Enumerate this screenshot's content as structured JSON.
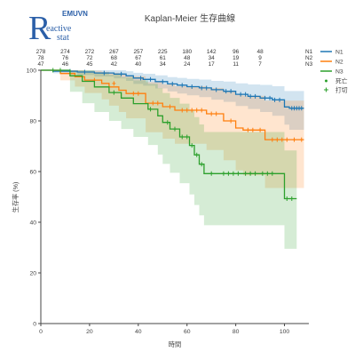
{
  "logo": {
    "top_text": "EMUVN",
    "big_letter": "R",
    "line1": "eactive",
    "line2": "stat"
  },
  "chart_data": {
    "type": "line",
    "title": "Kaplan-Meier 生存曲線",
    "xlabel": "時間",
    "ylabel": "生存率 (%)",
    "xlim": [
      0,
      110
    ],
    "ylim": [
      0,
      100
    ],
    "xticks": [
      0,
      20,
      40,
      60,
      80,
      100
    ],
    "yticks": [
      0,
      20,
      40,
      60,
      80,
      100
    ],
    "grid": false,
    "legend_position": "right",
    "risk_table": {
      "times": [
        0,
        10,
        20,
        30,
        40,
        50,
        60,
        70,
        80,
        90,
        100
      ],
      "rows": [
        {
          "name": "N1",
          "counts": [
            278,
            274,
            272,
            267,
            257,
            225,
            180,
            142,
            96,
            48,
            ""
          ]
        },
        {
          "name": "N2",
          "counts": [
            78,
            76,
            72,
            68,
            67,
            61,
            48,
            34,
            19,
            9,
            ""
          ]
        },
        {
          "name": "N3",
          "counts": [
            47,
            46,
            45,
            42,
            40,
            34,
            24,
            17,
            11,
            7,
            ""
          ]
        }
      ]
    },
    "series": [
      {
        "name": "N1",
        "color": "#1f77b4",
        "x": [
          0,
          5,
          15,
          22,
          30,
          35,
          38,
          42,
          47,
          52,
          56,
          60,
          65,
          70,
          75,
          80,
          85,
          90,
          95,
          100,
          102,
          108
        ],
        "y": [
          100,
          99.6,
          99.3,
          98.9,
          98.5,
          97.8,
          96.9,
          96.4,
          95.5,
          94.6,
          94.1,
          93.5,
          93.0,
          92.3,
          91.7,
          90.5,
          89.7,
          89.0,
          88.3,
          85.5,
          85.0,
          85.0
        ],
        "lower": [
          100,
          98.8,
          98.1,
          97.5,
          96.8,
          95.8,
          94.6,
          93.9,
          92.8,
          91.6,
          90.8,
          90.1,
          89.4,
          88.4,
          87.5,
          85.9,
          84.7,
          83.5,
          82.0,
          78.5,
          76.5,
          76.5
        ],
        "upper": [
          100,
          100,
          100,
          100,
          100,
          99.6,
          99.0,
          98.6,
          98.0,
          97.3,
          97.0,
          96.6,
          96.3,
          95.8,
          95.5,
          94.8,
          94.4,
          94.2,
          93.7,
          91.8,
          91.8,
          91.8
        ],
        "censored_x": [
          12,
          18,
          26,
          33,
          41,
          45,
          50,
          54,
          58,
          62,
          66,
          68,
          72,
          76,
          78,
          82,
          84,
          86,
          88,
          92,
          94,
          96,
          98,
          103,
          104,
          105,
          106,
          107
        ],
        "censored_y": [
          99.6,
          99.3,
          98.9,
          98.5,
          96.9,
          96.4,
          95.5,
          94.6,
          94.1,
          93.5,
          93.0,
          93.0,
          92.3,
          91.7,
          91.7,
          90.5,
          90.5,
          89.7,
          89.7,
          89.0,
          89.0,
          88.3,
          88.3,
          85.0,
          85.0,
          85.0,
          85.0,
          85.0
        ]
      },
      {
        "name": "N2",
        "color": "#ff7f0e",
        "x": [
          0,
          8,
          14,
          18,
          25,
          28,
          32,
          35,
          43,
          50,
          55,
          68,
          75,
          80,
          83,
          92,
          108
        ],
        "y": [
          100,
          98.7,
          97.4,
          96.1,
          94.8,
          93.4,
          92.1,
          90.8,
          87.0,
          85.6,
          84.2,
          82.8,
          80.0,
          77.2,
          76.4,
          72.6,
          72.6
        ],
        "lower": [
          100,
          96.0,
          93.5,
          91.0,
          88.5,
          86.0,
          83.5,
          81.0,
          75.5,
          73.0,
          71.0,
          68.5,
          64.5,
          60.5,
          58.5,
          53.5,
          53.5
        ],
        "upper": [
          100,
          100,
          100,
          99.8,
          99.4,
          99.0,
          98.4,
          97.6,
          95.3,
          94.5,
          93.7,
          93.0,
          91.8,
          90.3,
          89.9,
          88.0,
          88.0
        ],
        "censored_x": [
          12,
          22,
          30,
          38,
          40,
          46,
          48,
          53,
          58,
          60,
          62,
          64,
          66,
          70,
          72,
          78,
          85,
          87,
          90,
          95,
          97,
          99,
          101,
          104,
          107
        ],
        "censored_y": [
          98.7,
          96.1,
          94.8,
          90.8,
          90.8,
          87.0,
          87.0,
          85.6,
          84.2,
          84.2,
          84.2,
          84.2,
          84.2,
          82.8,
          82.8,
          80.0,
          76.4,
          76.4,
          76.4,
          72.6,
          72.6,
          72.6,
          72.6,
          72.6,
          72.6
        ]
      },
      {
        "name": "N3",
        "color": "#2ca02c",
        "x": [
          0,
          12,
          17,
          22,
          28,
          33,
          38,
          44,
          48,
          50,
          53,
          57,
          61,
          63,
          65,
          67,
          69,
          72,
          98,
          100,
          105
        ],
        "y": [
          100,
          97.8,
          95.6,
          93.4,
          91.2,
          89.0,
          86.8,
          84.6,
          82.0,
          79.4,
          76.8,
          73.7,
          70.3,
          66.6,
          62.9,
          59.2,
          59.2,
          59.2,
          59.2,
          49.3,
          49.3
        ],
        "lower": [
          100,
          91.5,
          87.0,
          83.5,
          80.0,
          76.8,
          73.7,
          70.5,
          66.7,
          63.0,
          59.5,
          55.4,
          51.0,
          46.8,
          42.7,
          38.8,
          38.8,
          38.8,
          38.8,
          29.5,
          29.5
        ],
        "upper": [
          100,
          100,
          100,
          99.2,
          98.2,
          97.2,
          96.0,
          94.6,
          92.9,
          91.0,
          89.1,
          86.8,
          84.4,
          81.5,
          78.6,
          75.6,
          75.6,
          75.6,
          75.6,
          68.3,
          68.3
        ],
        "censored_x": [
          5,
          8,
          30,
          45,
          52,
          55,
          58,
          60,
          62,
          64,
          66,
          70,
          75,
          77,
          79,
          81,
          84,
          86,
          88,
          91,
          93,
          95,
          101,
          103
        ],
        "censored_y": [
          100,
          100,
          91.2,
          84.6,
          79.4,
          76.8,
          73.7,
          73.7,
          70.3,
          66.6,
          62.9,
          59.2,
          59.2,
          59.2,
          59.2,
          59.2,
          59.2,
          59.2,
          59.2,
          59.2,
          59.2,
          59.2,
          49.3,
          49.3
        ]
      }
    ],
    "legend_extra": [
      {
        "label": "死亡",
        "symbol": "dot"
      },
      {
        "label": "打切",
        "symbol": "plus"
      }
    ]
  }
}
